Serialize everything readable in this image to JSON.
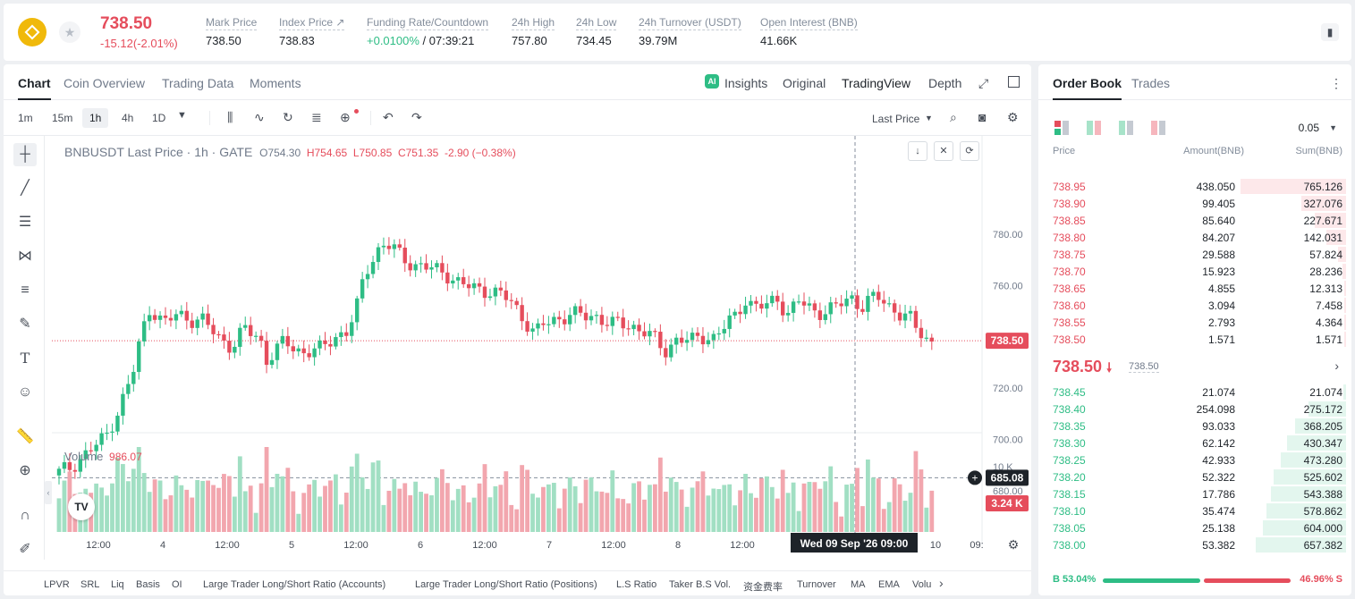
{
  "header": {
    "last_price": "738.50",
    "change": "-15.12(-2.01%)",
    "stats": [
      {
        "label": "Mark Price",
        "value": "738.50"
      },
      {
        "label": "Index Price ↗",
        "value": "738.83"
      },
      {
        "label": "Funding Rate/Countdown",
        "value_up": "+0.0100%",
        "value": " / 07:39:21"
      },
      {
        "label": "24h High",
        "value": "757.80"
      },
      {
        "label": "24h Low",
        "value": "734.45"
      },
      {
        "label": "24h Turnover (USDT)",
        "value": "39.79M"
      },
      {
        "label": "Open Interest (BNB)",
        "value": "41.66K"
      }
    ]
  },
  "chart_tabs": [
    "Chart",
    "Coin Overview",
    "Trading Data",
    "Moments"
  ],
  "view_tabs": {
    "insights": "Insights",
    "original": "Original",
    "tradingview": "TradingView",
    "depth": "Depth"
  },
  "intervals": [
    "1m",
    "15m",
    "1h",
    "4h",
    "1D"
  ],
  "price_type": "Last Price",
  "legend": {
    "symbol": "BNBUSDT Last Price · 1h · GATE",
    "o": "O754.30",
    "h": "H754.65",
    "l": "L750.85",
    "c": "C751.35",
    "chg": "-2.90 (−0.38%)"
  },
  "volume_legend": {
    "label": "Volume",
    "value": "986.07"
  },
  "price_axis": [
    "780.00",
    "760.00",
    "740.00",
    "720.00",
    "700.00",
    "680.00"
  ],
  "volume_axis": [
    "10 K",
    "5 K"
  ],
  "current_price_badge": "738.50",
  "crosshair_price": "685.08",
  "volume_badge": "3.24 K",
  "time_axis": [
    "12:00",
    "4",
    "12:00",
    "5",
    "12:00",
    "6",
    "12:00",
    "7",
    "12:00",
    "8",
    "12:00",
    "10",
    "09:"
  ],
  "crosshair_time": "Wed 09 Sep '26   09:00",
  "indicators": [
    "LPVR",
    "SRL",
    "Liq",
    "Basis",
    "OI",
    "Large Trader Long/Short Ratio (Accounts)",
    "Large Trader Long/Short Ratio (Positions)",
    "L.S Ratio",
    "Taker B.S Vol.",
    "资金费率",
    "Turnover",
    "MA",
    "EMA",
    "Volu"
  ],
  "orderbook": {
    "tabs": [
      "Order Book",
      "Trades"
    ],
    "precision": "0.05",
    "cols": [
      "Price",
      "Amount(BNB)",
      "Sum(BNB)"
    ],
    "asks": [
      {
        "p": "738.95",
        "a": "438.050",
        "s": "765.126"
      },
      {
        "p": "738.90",
        "a": "99.405",
        "s": "327.076"
      },
      {
        "p": "738.85",
        "a": "85.640",
        "s": "227.671"
      },
      {
        "p": "738.80",
        "a": "84.207",
        "s": "142.031"
      },
      {
        "p": "738.75",
        "a": "29.588",
        "s": "57.824"
      },
      {
        "p": "738.70",
        "a": "15.923",
        "s": "28.236"
      },
      {
        "p": "738.65",
        "a": "4.855",
        "s": "12.313"
      },
      {
        "p": "738.60",
        "a": "3.094",
        "s": "7.458"
      },
      {
        "p": "738.55",
        "a": "2.793",
        "s": "4.364"
      },
      {
        "p": "738.50",
        "a": "1.571",
        "s": "1.571"
      }
    ],
    "mid_price": "738.50",
    "mid_mark": "738.50",
    "bids": [
      {
        "p": "738.45",
        "a": "21.074",
        "s": "21.074"
      },
      {
        "p": "738.40",
        "a": "254.098",
        "s": "275.172"
      },
      {
        "p": "738.35",
        "a": "93.033",
        "s": "368.205"
      },
      {
        "p": "738.30",
        "a": "62.142",
        "s": "430.347"
      },
      {
        "p": "738.25",
        "a": "42.933",
        "s": "473.280"
      },
      {
        "p": "738.20",
        "a": "52.322",
        "s": "525.602"
      },
      {
        "p": "738.15",
        "a": "17.786",
        "s": "543.388"
      },
      {
        "p": "738.10",
        "a": "35.474",
        "s": "578.862"
      },
      {
        "p": "738.05",
        "a": "25.138",
        "s": "604.000"
      },
      {
        "p": "738.00",
        "a": "53.382",
        "s": "657.382"
      }
    ],
    "buy_ratio": "B 53.04%",
    "sell_ratio": "46.96% S",
    "buy_fraction": 0.5304
  },
  "colors": {
    "up": "#2ebd85",
    "down": "#e54d5c"
  }
}
